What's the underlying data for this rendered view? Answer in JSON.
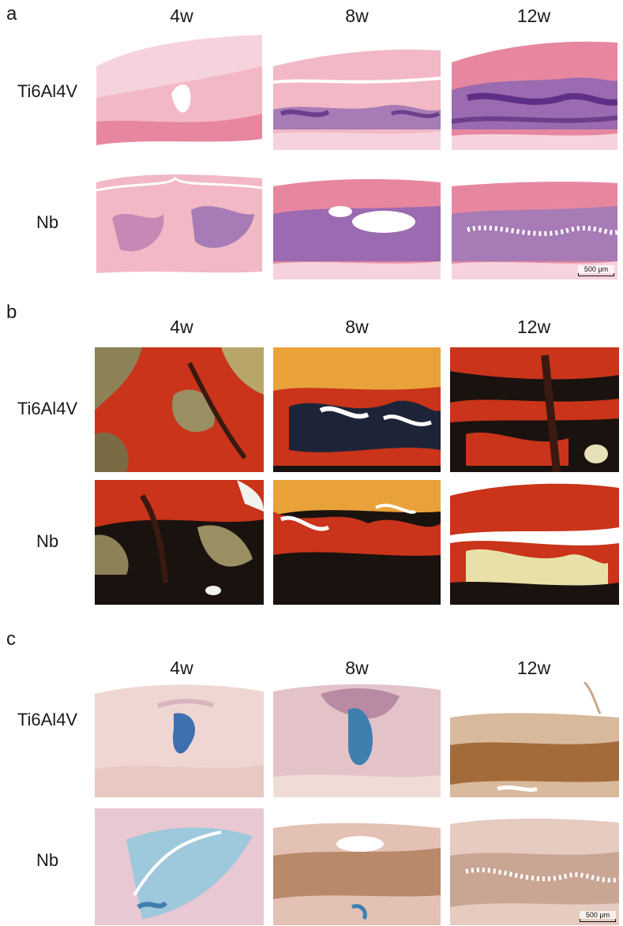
{
  "panels": [
    {
      "letter": "a",
      "cols": [
        "4w",
        "8w",
        "12w"
      ],
      "rows": [
        "Ti6Al4V",
        "Nb"
      ],
      "scale": "500 μm"
    },
    {
      "letter": "b",
      "cols": [
        "4w",
        "8w",
        "12w"
      ],
      "rows": [
        "Ti6Al4V",
        "Nb"
      ]
    },
    {
      "letter": "c",
      "cols": [
        "4w",
        "8w",
        "12w"
      ],
      "rows": [
        "Ti6Al4V",
        "Nb"
      ],
      "scale": "500 μm"
    }
  ],
  "stains": {
    "a": {
      "base": "#f2b8c6",
      "dark": "#e7879f",
      "accent": "#8a5aa6"
    },
    "b": {
      "base": "#c9341a",
      "dark": "#1a120e",
      "accent": "#e9a23a"
    },
    "c": {
      "base": "#eecdd0",
      "dark": "#c99a7e",
      "accent": "#3e7fb0"
    }
  }
}
